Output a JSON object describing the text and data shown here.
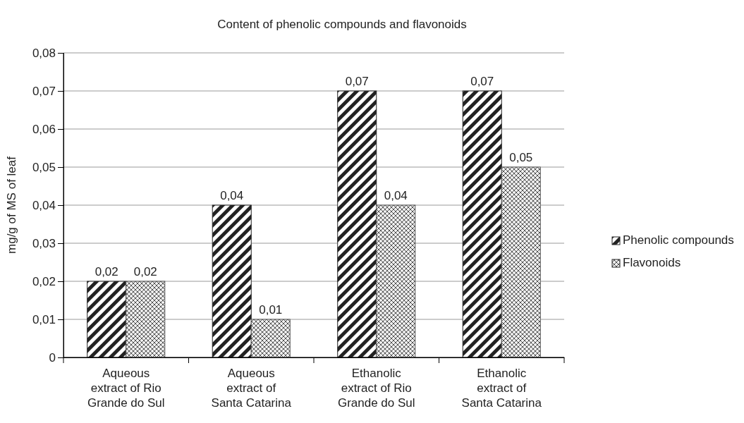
{
  "chart_data": {
    "type": "bar",
    "title": "Content of phenolic compounds and flavonoids",
    "ylabel": "mg/g of MS of leaf",
    "categories": [
      "Aqueous extract of Rio Grande do Sul",
      "Aqueous extract of Santa Catarina",
      "Ethanolic extract of Rio Grande do Sul",
      "Ethanolic extract of Santa Catarina"
    ],
    "series": [
      {
        "name": "Phenolic compounds",
        "color": "#222222",
        "values": [
          0.02,
          0.04,
          0.07,
          0.07
        ],
        "value_labels": [
          "0,02",
          "0,04",
          "0,07",
          "0,07"
        ]
      },
      {
        "name": "Flavonoids",
        "color": "#555555",
        "values": [
          0.02,
          0.01,
          0.04,
          0.05
        ],
        "value_labels": [
          "0,02",
          "0,01",
          "0,04",
          "0,05"
        ]
      }
    ],
    "ylim": [
      0,
      0.08
    ],
    "yticks": [
      0,
      {
        "value": 0.01,
        "label": "0,01"
      },
      {
        "value": 0.02,
        "label": "0,02"
      },
      {
        "value": 0.03,
        "label": "0,03"
      },
      {
        "value": 0.04,
        "label": "0,04"
      },
      {
        "value": 0.05,
        "label": "0,05"
      },
      {
        "value": 0.06,
        "label": "0,06"
      },
      {
        "value": 0.07,
        "label": "0,07"
      },
      {
        "value": 0.08,
        "label": "0,08"
      }
    ],
    "grid": "y",
    "legend": "right"
  }
}
